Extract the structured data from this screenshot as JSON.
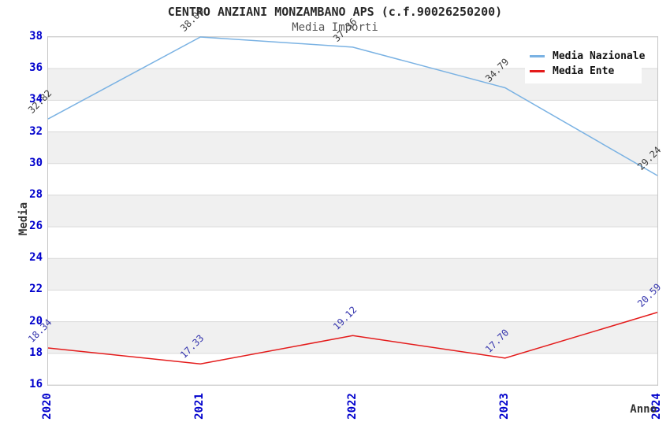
{
  "chart_data": {
    "type": "line",
    "title": "CENTRO ANZIANI MONZAMBANO APS (c.f.90026250200)",
    "subtitle": "Media Importi",
    "xlabel": "Anno",
    "ylabel": "Media",
    "categories": [
      "2020",
      "2021",
      "2022",
      "2023",
      "2024"
    ],
    "ylim": [
      16,
      38
    ],
    "ytick_step": 2,
    "grid": "horizontal-on",
    "band_fill": "alternating",
    "legend_position": "top-right-inside",
    "series": [
      {
        "name": "Media Nazionale",
        "color": "#7ab2e3",
        "label_color": "#3d3d3d",
        "values": [
          32.82,
          38.0,
          37.36,
          34.79,
          29.24
        ]
      },
      {
        "name": "Media Ente",
        "color": "#e41b1b",
        "label_color": "#3434ad",
        "values": [
          18.34,
          17.33,
          19.12,
          17.7,
          20.59
        ]
      }
    ],
    "colors": {
      "tick_label": "#0000cc",
      "band_gray": "#f0f0f0",
      "gridline": "#d9d9d9",
      "plot_border": "#c6c6c6",
      "title": "#2a2a2a",
      "subtitle": "#555555",
      "axis_title": "#333333"
    }
  }
}
